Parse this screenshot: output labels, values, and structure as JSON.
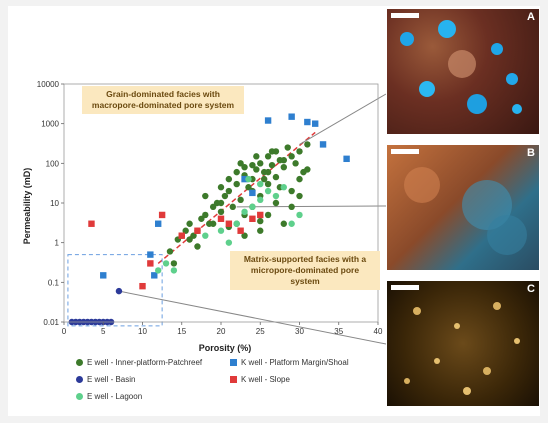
{
  "chart_data": {
    "type": "scatter",
    "title": "",
    "xlabel": "Porosity (%)",
    "ylabel": "Permeability (mD)",
    "xlim": [
      0,
      40
    ],
    "ylim": [
      0.01,
      10000
    ],
    "yscale": "log",
    "x_ticks": [
      0,
      5,
      10,
      15,
      20,
      25,
      30,
      35,
      40
    ],
    "y_ticks": [
      0.01,
      0.1,
      1,
      10,
      100,
      1000,
      10000
    ],
    "y_tick_labels": [
      "0.01",
      "0.1",
      "1",
      "10",
      "100",
      "1000",
      "10000"
    ],
    "annotations": [
      "Grain-dominated facies with macropore-dominated pore system",
      "Matrix-supported facies with a micropore-dominated pore system"
    ],
    "photo_labels": [
      "A",
      "B",
      "C"
    ],
    "colors": {
      "inner_platform": "#3d7a2b",
      "platform_margin": "#2e7fcf",
      "basin": "#2c3a99",
      "slope": "#e03a3a",
      "lagoon": "#5ed08c",
      "trend_line": "#e03a3a",
      "dashed_box": "#6b9fe0"
    },
    "series": [
      {
        "name": "E well - Inner-platform-Patchreef",
        "marker": "circle",
        "color": "#3d7a2b",
        "points": [
          [
            13.5,
            0.6
          ],
          [
            14,
            0.3
          ],
          [
            14.5,
            1.2
          ],
          [
            15,
            1.5
          ],
          [
            15.5,
            2
          ],
          [
            16,
            3
          ],
          [
            16.5,
            1.5
          ],
          [
            17,
            2
          ],
          [
            17.5,
            4
          ],
          [
            18,
            5
          ],
          [
            18.5,
            3
          ],
          [
            19,
            8
          ],
          [
            19.5,
            10
          ],
          [
            20,
            6
          ],
          [
            20.5,
            15
          ],
          [
            21,
            20
          ],
          [
            21.5,
            8
          ],
          [
            22,
            30
          ],
          [
            22.5,
            12
          ],
          [
            23,
            50
          ],
          [
            23.5,
            25
          ],
          [
            24,
            40
          ],
          [
            24.5,
            70
          ],
          [
            25,
            100
          ],
          [
            25.5,
            60
          ],
          [
            26,
            150
          ],
          [
            26.5,
            90
          ],
          [
            27,
            200
          ],
          [
            27.5,
            120
          ],
          [
            28,
            80
          ],
          [
            28.5,
            250
          ],
          [
            29,
            150
          ],
          [
            29.5,
            100
          ],
          [
            30,
            200
          ],
          [
            30.5,
            60
          ],
          [
            31,
            300
          ],
          [
            24,
            20
          ],
          [
            25,
            15
          ],
          [
            26,
            30
          ],
          [
            27,
            45
          ],
          [
            22,
            60
          ],
          [
            23,
            80
          ],
          [
            21,
            40
          ],
          [
            20,
            25
          ],
          [
            18,
            15
          ],
          [
            19,
            3
          ],
          [
            16,
            1.2
          ],
          [
            17,
            0.8
          ],
          [
            24,
            8
          ],
          [
            26,
            5
          ],
          [
            28,
            3
          ],
          [
            25,
            2
          ],
          [
            23,
            1.5
          ],
          [
            22,
            3
          ],
          [
            27,
            10
          ],
          [
            29,
            20
          ],
          [
            30,
            40
          ],
          [
            31,
            70
          ],
          [
            24.5,
            150
          ],
          [
            26.5,
            200
          ],
          [
            28,
            120
          ],
          [
            25,
            3.5
          ],
          [
            23,
            5
          ],
          [
            21,
            2.5
          ],
          [
            20,
            10
          ],
          [
            29,
            8
          ],
          [
            30,
            15
          ],
          [
            27.5,
            25
          ],
          [
            26,
            60
          ],
          [
            25.5,
            40
          ],
          [
            22.5,
            100
          ],
          [
            24,
            90
          ]
        ]
      },
      {
        "name": "K well - Platform Margin/Shoal",
        "marker": "square",
        "color": "#2e7fcf",
        "points": [
          [
            5,
            0.15
          ],
          [
            11,
            0.5
          ],
          [
            11.5,
            0.15
          ],
          [
            12,
            3
          ],
          [
            23,
            40
          ],
          [
            24,
            18
          ],
          [
            26,
            1200
          ],
          [
            29,
            1500
          ],
          [
            31,
            1100
          ],
          [
            32,
            1000
          ],
          [
            36,
            130
          ],
          [
            33,
            300
          ]
        ]
      },
      {
        "name": "E well - Basin",
        "marker": "circle",
        "color": "#2c3a99",
        "points": [
          [
            1,
            0.01
          ],
          [
            1.5,
            0.01
          ],
          [
            2,
            0.01
          ],
          [
            2.5,
            0.01
          ],
          [
            3,
            0.01
          ],
          [
            3.5,
            0.01
          ],
          [
            4,
            0.01
          ],
          [
            4.5,
            0.01
          ],
          [
            5,
            0.01
          ],
          [
            5.5,
            0.01
          ],
          [
            6,
            0.01
          ],
          [
            7,
            0.06
          ]
        ]
      },
      {
        "name": "K well - Slope",
        "marker": "square",
        "color": "#e03a3a",
        "points": [
          [
            3.5,
            3
          ],
          [
            10,
            0.08
          ],
          [
            11,
            0.3
          ],
          [
            12.5,
            5
          ],
          [
            15,
            1.5
          ],
          [
            17,
            2
          ],
          [
            20,
            4
          ],
          [
            21,
            3
          ],
          [
            22.5,
            2
          ],
          [
            24,
            4
          ],
          [
            25,
            5
          ]
        ]
      },
      {
        "name": "E well - Lagoon",
        "marker": "circle",
        "color": "#5ed08c",
        "points": [
          [
            12,
            0.2
          ],
          [
            13,
            0.3
          ],
          [
            14,
            0.2
          ],
          [
            18,
            1.5
          ],
          [
            20,
            2
          ],
          [
            21,
            1
          ],
          [
            22,
            3
          ],
          [
            23,
            6
          ],
          [
            24,
            8
          ],
          [
            25,
            12
          ],
          [
            26,
            20
          ],
          [
            27,
            15
          ],
          [
            28,
            25
          ],
          [
            29,
            3
          ],
          [
            30,
            5
          ],
          [
            25,
            30
          ],
          [
            23.5,
            40
          ]
        ]
      }
    ],
    "trend_line": {
      "x": [
        12,
        32
      ],
      "y": [
        0.3,
        600
      ]
    },
    "legend": {
      "position": "bottom",
      "columns": 2
    }
  }
}
